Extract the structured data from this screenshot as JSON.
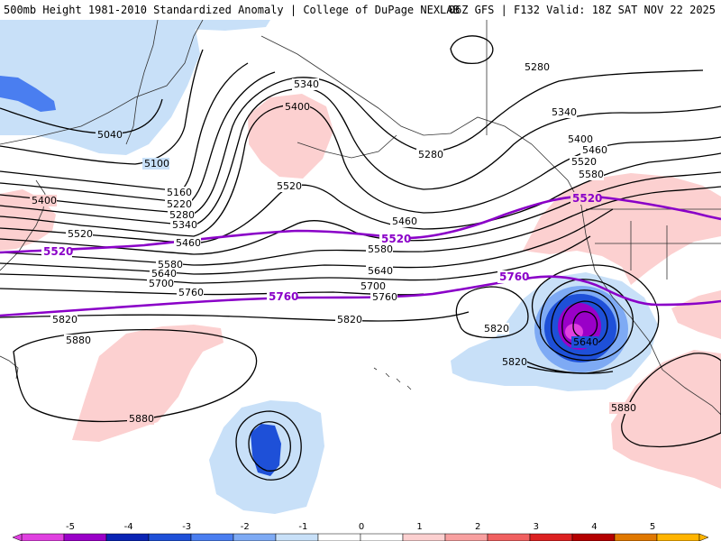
{
  "header": {
    "title": "500mb Height 1981-2010 Standardized Anomaly | College of DuPage NEXLAB",
    "valid": "06Z GFS | F132 Valid: 18Z SAT NOV 22 2025"
  },
  "colors": {
    "key_contour": "#8a00c8",
    "contour": "#000000",
    "coast": "#333333"
  },
  "contour_labels": {
    "c5040": "5040",
    "c5100": "5100",
    "c5160": "5160",
    "c5220": "5220",
    "c5280a": "5280",
    "c5280b": "5280",
    "c5280c": "5280",
    "c5340a": "5340",
    "c5340b": "5340",
    "c5340c": "5340",
    "c5400a": "5400",
    "c5400b": "5400",
    "c5400c": "5400",
    "c5460a": "5460",
    "c5460b": "5460",
    "c5460c": "5460",
    "c5520a": "5520",
    "c5520b": "5520",
    "c5520c": "5520",
    "c5580a": "5580",
    "c5580b": "5580",
    "c5580c": "5580",
    "c5640a": "5640",
    "c5640b": "5640",
    "c5640c": "5640",
    "c5700a": "5700",
    "c5700b": "5700",
    "c5760a": "5760",
    "c5760b": "5760",
    "c5820a": "5820",
    "c5820b": "5820",
    "c5820c": "5820",
    "c5820d": "5820",
    "c5880a": "5880",
    "c5880b": "5880",
    "c5880c": "5880"
  },
  "key_labels": {
    "k5520a": "5520",
    "k5520b": "5520",
    "k5520c": "5520",
    "k5760a": "5760",
    "k5760b": "5760"
  },
  "legend": {
    "ticks": [
      "-5",
      "-4",
      "-3",
      "-2",
      "-1",
      "0",
      "1",
      "2",
      "3",
      "4",
      "5"
    ],
    "bins": [
      {
        "color": "#e040e0"
      },
      {
        "color": "#9a00c8"
      },
      {
        "color": "#0a24b4"
      },
      {
        "color": "#1e50d8"
      },
      {
        "color": "#4a7ef0"
      },
      {
        "color": "#7eaaf4"
      },
      {
        "color": "#c8e0f8"
      },
      {
        "color": "#ffffff"
      },
      {
        "color": "#ffffff"
      },
      {
        "color": "#fcd0d0"
      },
      {
        "color": "#f8a0a0"
      },
      {
        "color": "#f06060"
      },
      {
        "color": "#dc2020"
      },
      {
        "color": "#b40000"
      },
      {
        "color": "#e07800"
      },
      {
        "color": "#ffb400"
      }
    ]
  }
}
